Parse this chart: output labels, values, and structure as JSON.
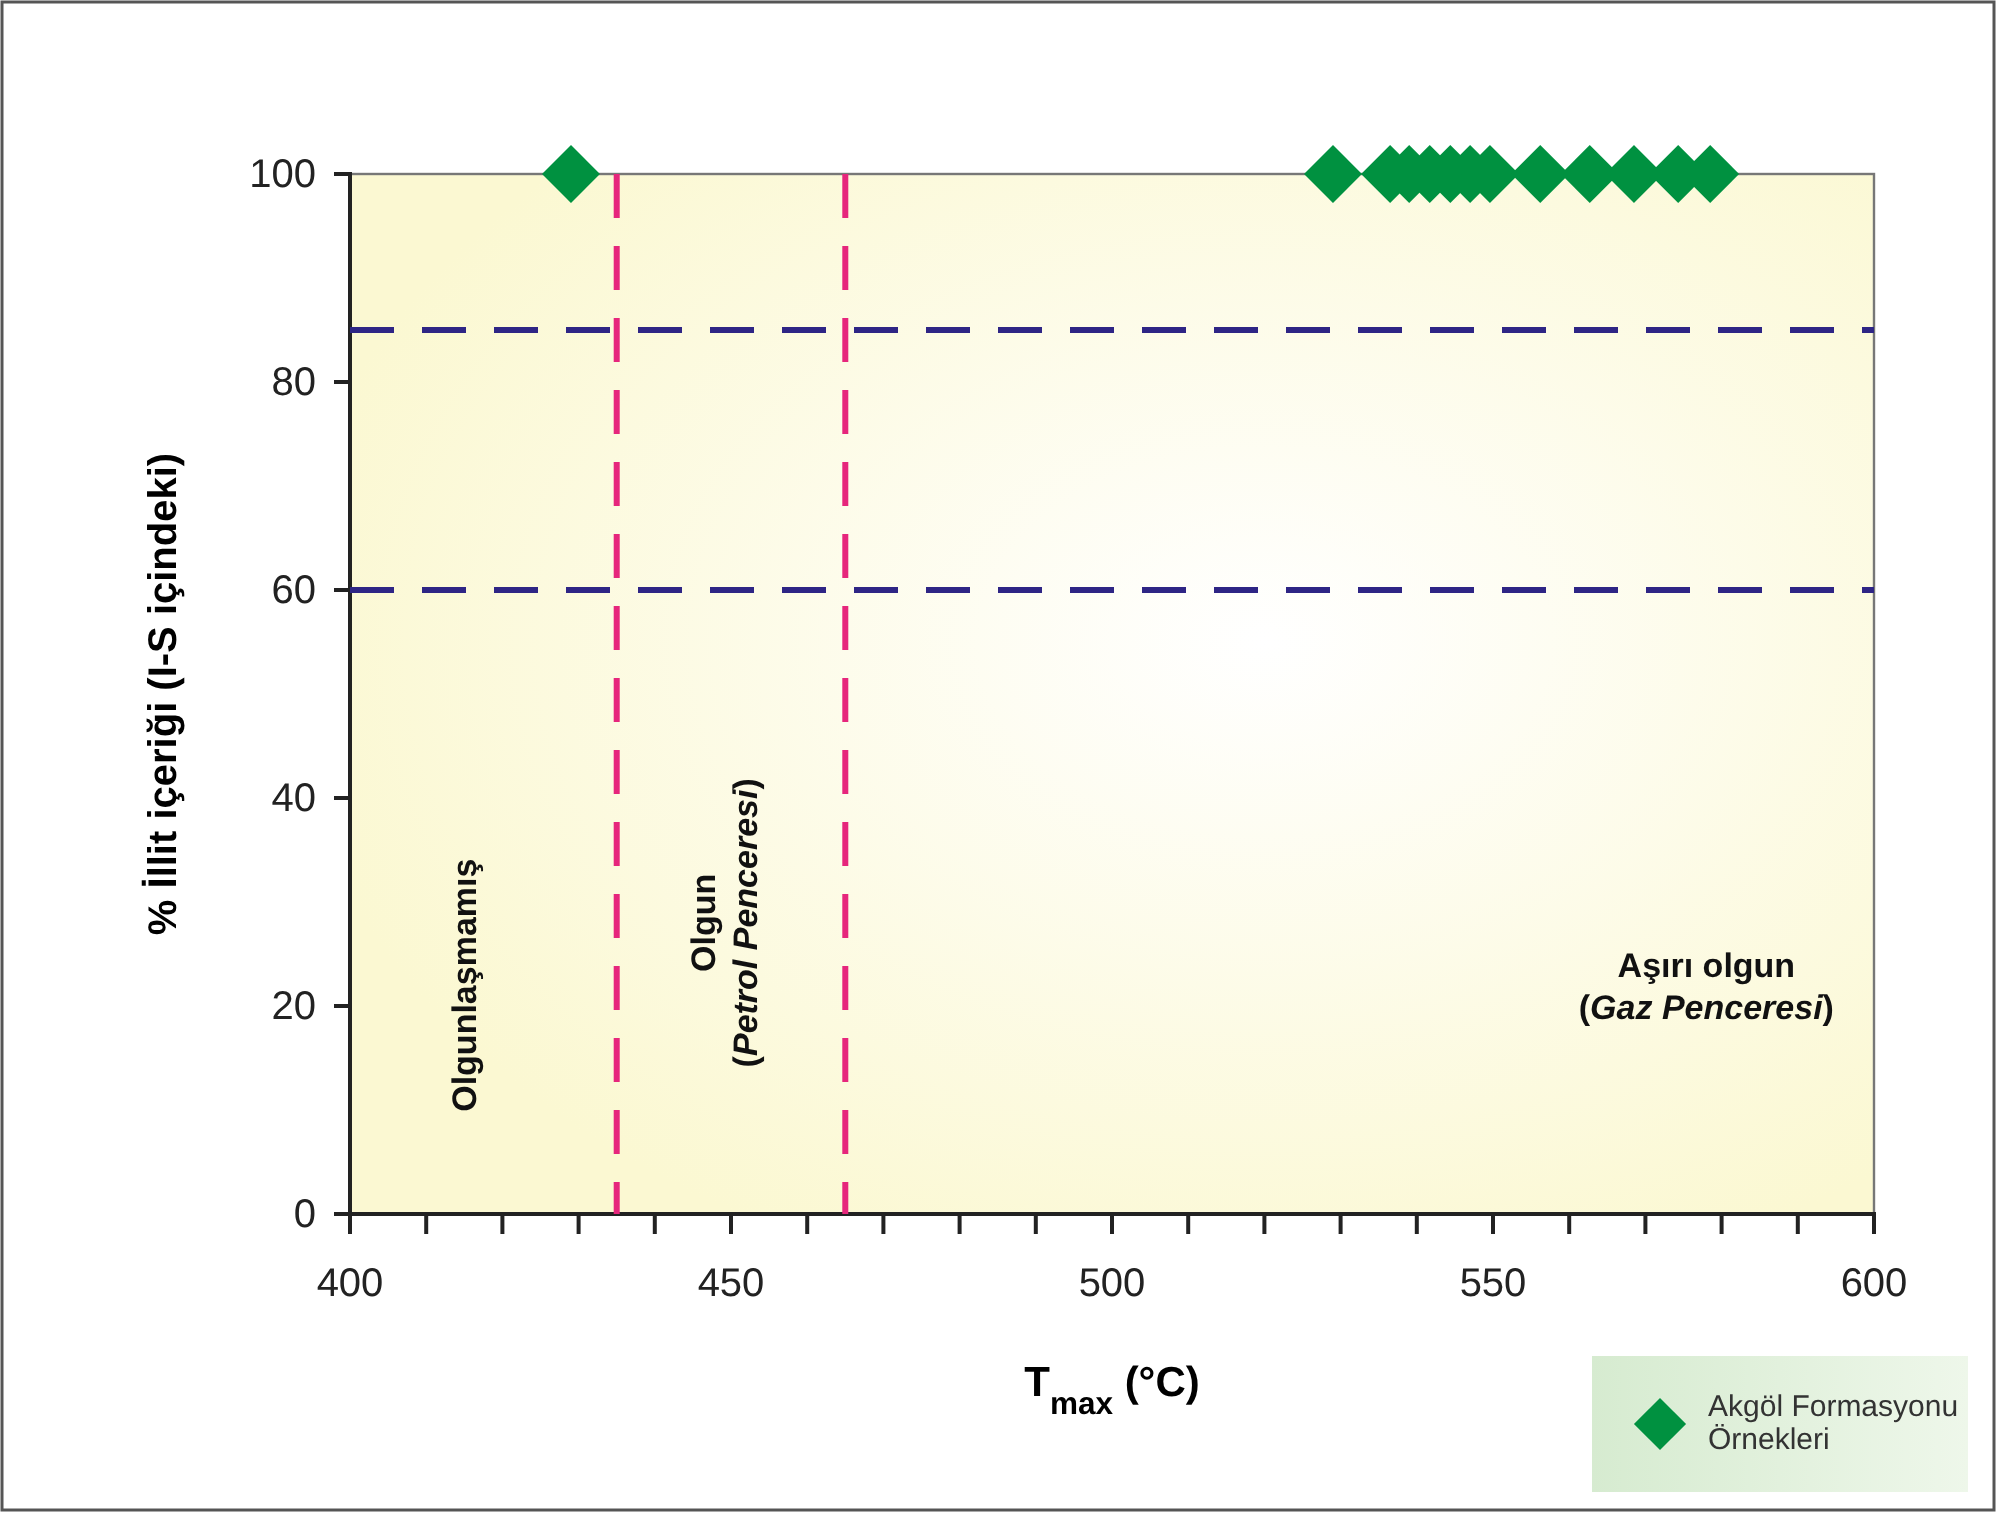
{
  "chart_data": {
    "type": "scatter",
    "xlabel": "T$_{max}$ (°C)",
    "ylabel": "% İllit içeriği (I-S içindeki)",
    "xlim": [
      400,
      600
    ],
    "ylim": [
      0,
      100
    ],
    "xticks": [
      400,
      {
        "value": 410,
        "label": null
      },
      {
        "value": 420,
        "label": null
      },
      {
        "value": 430,
        "label": null
      },
      {
        "value": 440,
        "label": null
      },
      450,
      {
        "value": 460,
        "label": null
      },
      {
        "value": 470,
        "label": null
      },
      {
        "value": 480,
        "label": null
      },
      {
        "value": 490,
        "label": null
      },
      500,
      {
        "value": 510,
        "label": null
      },
      {
        "value": 520,
        "label": null
      },
      {
        "value": 530,
        "label": null
      },
      {
        "value": 540,
        "label": null
      },
      550,
      {
        "value": 560,
        "label": null
      },
      {
        "value": 570,
        "label": null
      },
      {
        "value": 580,
        "label": null
      },
      {
        "value": 590,
        "label": null
      },
      600
    ],
    "yticks": [
      0,
      20,
      40,
      60,
      80,
      100
    ],
    "grid": false,
    "legend": "bottom right",
    "marker": "diamond",
    "series": [
      {
        "name": "Akgöl Formasyonu Örnekleri",
        "color": "#009140",
        "x": [
          429,
          529,
          536.5,
          539,
          541.7,
          544.4,
          547,
          549.6,
          556.2,
          562.7,
          568.5,
          574.3,
          578.5
        ],
        "values": [
          100,
          100,
          100,
          100,
          100,
          100,
          100,
          100,
          100,
          100,
          100,
          100,
          100
        ]
      }
    ],
    "ref_lines": [
      {
        "axis": "x",
        "value": 435,
        "color": "#e6267c",
        "line_style": "dashed"
      },
      {
        "axis": "x",
        "value": 465,
        "color": "#e6267c",
        "line_style": "dashed"
      },
      {
        "axis": "y",
        "value": 85,
        "color": "#2e2585",
        "line_style": "dashed"
      },
      {
        "axis": "y",
        "value": 60,
        "color": "#2e2585",
        "line_style": "dashed"
      }
    ],
    "annotations": [
      "Olgunlaşmamış",
      "Olgun (Petrol Penceresi)",
      "Aşırı olgun (Gaz Penceresi)"
    ]
  }
}
